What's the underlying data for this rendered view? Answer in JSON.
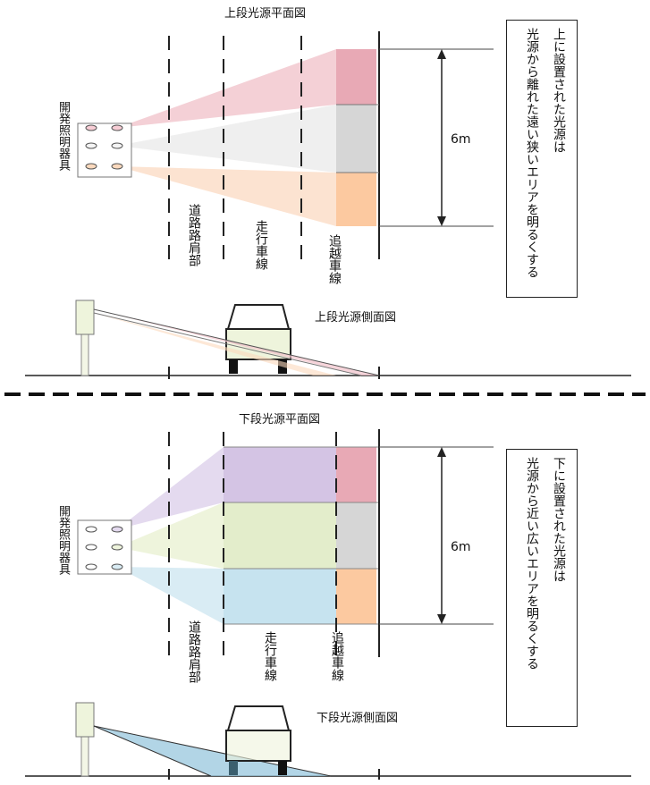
{
  "upper": {
    "plan_title": "上段光源平面図",
    "side_title": "上段光源側面図",
    "fixture_label": "開発照明器具",
    "lanes": {
      "shoulder": "道路路肩部",
      "travel": "走行車線",
      "passing": "追越車線"
    },
    "distance": "6m",
    "note": {
      "line1": "上に設置された光源は",
      "line2": "光源から離れた遠い狭いエリアを明るくする"
    }
  },
  "lower": {
    "plan_title": "下段光源平面図",
    "side_title": "下段光源側面図",
    "fixture_label": "開発照明器具",
    "lanes": {
      "shoulder": "道路路肩部",
      "travel": "走行車線",
      "passing": "追越車線"
    },
    "distance": "6m",
    "note": {
      "line1": "下に設置された光源は",
      "line2": "光源から近い広いエリアを明るくする"
    }
  },
  "colors": {
    "pink": "#f0c4cc",
    "pink_dark": "#e39aa8",
    "gray": "#d9d9d9",
    "white_beam": "#eeeeee",
    "peach": "#fdd8b8",
    "peach_light": "#fbe6d6",
    "purple": "#dccfe8",
    "purple_dark": "#c9b7dd",
    "green": "#e6efd3",
    "green_dark": "#d6e5bd",
    "blue": "#cfe7f1",
    "blue_dark": "#a9d2e3",
    "road_line": "#222222"
  }
}
